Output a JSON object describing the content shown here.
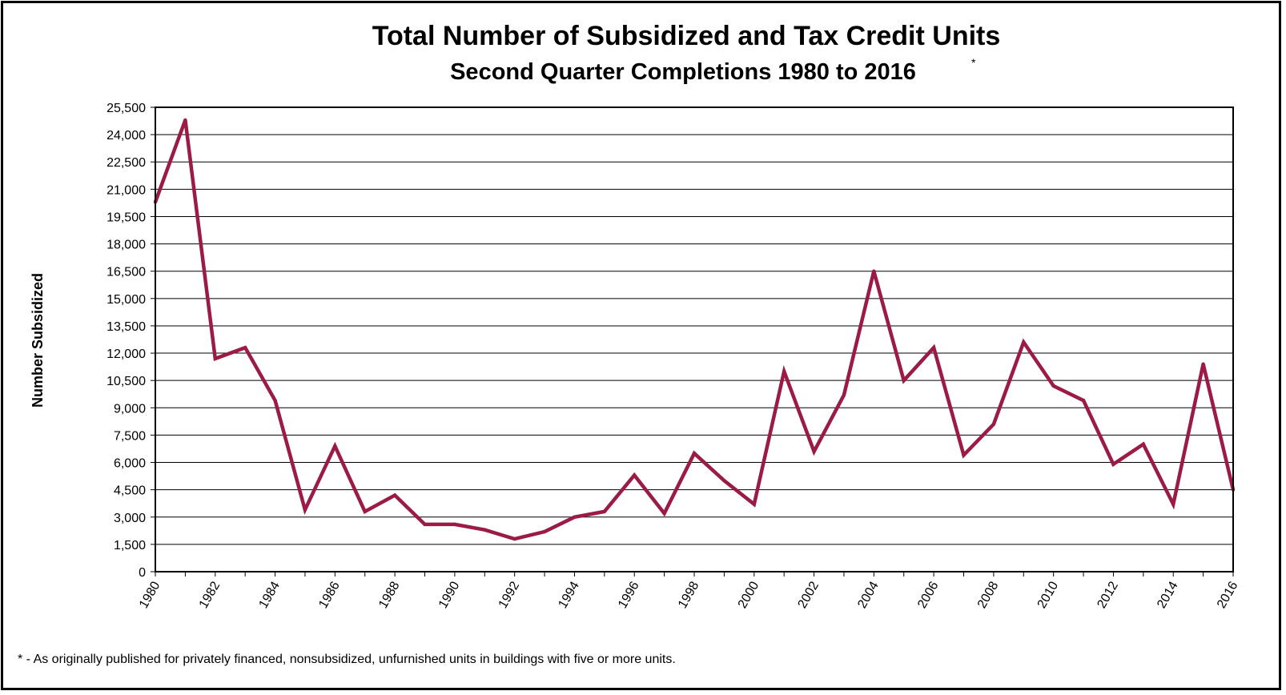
{
  "chart_data": {
    "type": "line",
    "title": "Total Number of Subsidized and Tax Credit Units",
    "subtitle": "Second Quarter Completions 1980 to 2016",
    "subtitle_marker": "*",
    "xlabel": "",
    "ylabel": "Number Subsidized",
    "x": [
      1980,
      1981,
      1982,
      1983,
      1984,
      1985,
      1986,
      1987,
      1988,
      1989,
      1990,
      1991,
      1992,
      1993,
      1994,
      1995,
      1996,
      1997,
      1998,
      1999,
      2000,
      2001,
      2002,
      2003,
      2004,
      2005,
      2006,
      2007,
      2008,
      2009,
      2010,
      2011,
      2012,
      2013,
      2014,
      2015,
      2016
    ],
    "series": [
      {
        "values": [
          20300,
          24800,
          11700,
          12300,
          9400,
          3400,
          6900,
          3300,
          4200,
          2600,
          2600,
          2300,
          1800,
          2200,
          3000,
          3300,
          5300,
          3200,
          6500,
          5000,
          3700,
          11000,
          6600,
          9700,
          16500,
          10500,
          12300,
          6400,
          8100,
          12600,
          10200,
          9400,
          5900,
          7000,
          3700,
          11400,
          4500
        ],
        "color": "#9b1b45"
      }
    ],
    "xticks": [
      "1980",
      "1982",
      "1984",
      "1986",
      "1988",
      "1990",
      "1992",
      "1994",
      "1996",
      "1998",
      "2000",
      "2002",
      "2004",
      "2006",
      "2008",
      "2010",
      "2012",
      "2014",
      "2016"
    ],
    "yticks": [
      "0",
      "1,500",
      "3,000",
      "4,500",
      "6,000",
      "7,500",
      "9,000",
      "10,500",
      "12,000",
      "13,500",
      "15,000",
      "16,500",
      "18,000",
      "19,500",
      "21,000",
      "22,500",
      "24,000",
      "25,500"
    ],
    "ylim": [
      0,
      25500
    ],
    "grid": "horizontal",
    "legend": "none",
    "footnote": "* - As originally published for privately financed, nonsubsidized, unfurnished units in buildings with five or more units."
  }
}
